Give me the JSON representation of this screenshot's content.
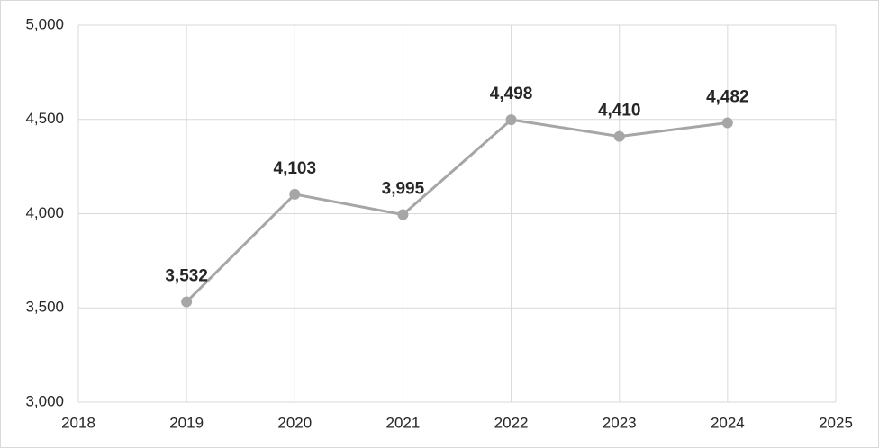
{
  "chart_data": {
    "type": "line",
    "x": [
      2019,
      2020,
      2021,
      2022,
      2023,
      2024
    ],
    "values": [
      3532,
      4103,
      3995,
      4498,
      4410,
      4482
    ],
    "value_labels": [
      "3,532",
      "4,103",
      "3,995",
      "4,498",
      "4,410",
      "4,482"
    ],
    "color": "#a6a6a6",
    "xlim": [
      2018,
      2025
    ],
    "xticks": [
      2018,
      2019,
      2020,
      2021,
      2022,
      2023,
      2024,
      2025
    ],
    "ylim": [
      3000,
      5000
    ],
    "yticks": [
      {
        "value": 3000,
        "label": "3,000"
      },
      {
        "value": 3500,
        "label": "3,500"
      },
      {
        "value": 4000,
        "label": "4,000"
      },
      {
        "value": 4500,
        "label": "4,500"
      },
      {
        "value": 5000,
        "label": "5,000"
      }
    ],
    "grid": true
  }
}
